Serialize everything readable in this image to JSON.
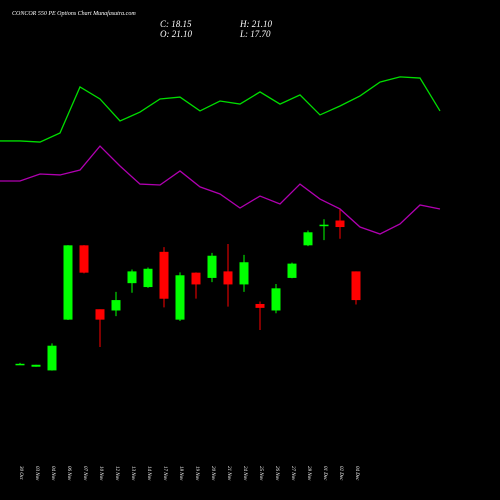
{
  "chart_data": [
    {
      "type": "candlestick",
      "title": "CONCOR 550  PE Options Chart Munafasutra.com",
      "summary": {
        "close": "C: 18.15",
        "high": "H: 21.10",
        "open": "O: 21.10",
        "low": "L: 17.70"
      },
      "categories": [
        "30 Oct",
        "03 Nov",
        "04 Nov",
        "06 Nov",
        "07 Nov",
        "10 Nov",
        "12 Nov",
        "13 Nov",
        "14 Nov",
        "17 Nov",
        "18 Nov",
        "19 Nov",
        "20 Nov",
        "21 Nov",
        "24 Nov",
        "25 Nov",
        "26 Nov",
        "27 Nov",
        "28 Nov",
        "01 Dec",
        "02 Dec",
        "04 Dec"
      ],
      "open": [
        11.6,
        11.3,
        10.92,
        16.14,
        23.78,
        17.21,
        17.08,
        19.89,
        19.49,
        23.11,
        16.14,
        20.97,
        20.43,
        21.1,
        19.76,
        17.75,
        17.08,
        20.43,
        23.78,
        25.8,
        26.33,
        21.1
      ],
      "high": [
        11.7,
        11.5,
        13.7,
        23.8,
        23.8,
        17.2,
        19.0,
        21.3,
        21.5,
        23.6,
        21.0,
        21.0,
        23.0,
        23.91,
        22.8,
        18.0,
        19.8,
        22.0,
        25.3,
        26.46,
        27.53,
        21.1
      ],
      "low": [
        11.5,
        11.3,
        10.9,
        16.1,
        20.9,
        13.33,
        16.5,
        18.9,
        19.4,
        17.4,
        16.0,
        18.3,
        20.0,
        17.48,
        19.0,
        15.07,
        16.8,
        20.4,
        23.7,
        24.32,
        24.45,
        17.7
      ],
      "close": [
        11.6,
        11.5,
        13.46,
        23.78,
        20.97,
        16.14,
        18.15,
        21.1,
        21.37,
        18.29,
        20.7,
        19.76,
        22.71,
        19.76,
        22.04,
        17.35,
        19.36,
        21.9,
        25.12,
        25.9,
        25.66,
        18.15
      ],
      "up_color": "#00ff00",
      "down_color": "#ff0000",
      "ylim": [
        5,
        38
      ]
    },
    {
      "type": "line",
      "series": [
        {
          "color": "#00dd00",
          "values": [
            57.4,
            57.4,
            56.8,
            61.6,
            85.8,
            79.5,
            67.9,
            72.6,
            79.5,
            80.5,
            73.2,
            78.4,
            76.8,
            83.2,
            76.8,
            81.6,
            71.1,
            75.8,
            81.1,
            88.4,
            91.1,
            90.5,
            73.2
          ]
        },
        {
          "color": "#b000b0",
          "values": [
            36.3,
            36.3,
            40.0,
            39.5,
            42.1,
            54.7,
            44.2,
            34.7,
            34.2,
            41.6,
            33.2,
            29.5,
            22.1,
            28.4,
            24.2,
            34.7,
            26.8,
            21.6,
            12.1,
            8.4,
            13.7,
            23.7,
            21.6
          ]
        }
      ],
      "ylim": [
        0,
        100
      ]
    }
  ]
}
